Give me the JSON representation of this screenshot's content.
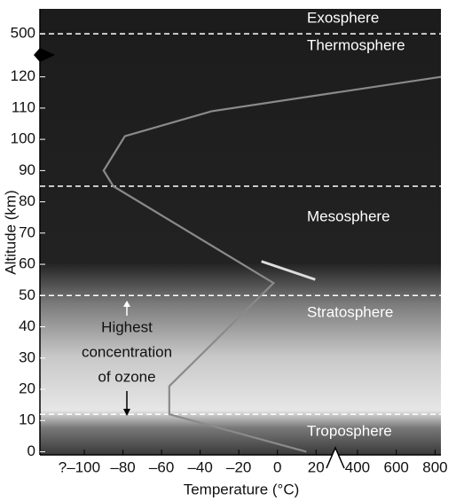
{
  "chart_data": {
    "type": "line",
    "x_label": "Temperature (°C)",
    "y_label": "Altitude (km)",
    "xsegments": [
      {
        "xlim": [
          -123,
          30
        ],
        "xticks": [
          {
            "value": -100,
            "label": "?–100"
          },
          {
            "value": -80,
            "label": "–80"
          },
          {
            "value": -60,
            "label": "–60"
          },
          {
            "value": -40,
            "label": "–40"
          },
          {
            "value": -20,
            "label": "–20"
          },
          0,
          20
        ]
      },
      {
        "xlim": [
          286,
          830
        ],
        "xticks": [
          400,
          600,
          800
        ]
      }
    ],
    "ysegments": [
      {
        "ylim": [
          -1,
          127
        ],
        "yticks": [
          0,
          10,
          20,
          30,
          40,
          50,
          60,
          70,
          80,
          90,
          100,
          110,
          120
        ]
      },
      {
        "ylim": [
          478,
          526
        ],
        "yticks": [
          500
        ]
      }
    ],
    "boundaries": [
      12,
      50,
      85,
      500
    ],
    "series": [
      {
        "color": "#8a8a8a",
        "x": [
          15,
          -56,
          -56,
          -2,
          -85,
          -90,
          -79,
          -34,
          830
        ],
        "values": [
          0,
          12,
          21,
          54,
          85,
          90,
          101,
          109,
          120
        ]
      }
    ],
    "annotations": [
      "Exosphere",
      "Thermosphere",
      "Mesosphere",
      "Stratosphere",
      "Troposphere",
      "Highest",
      "concentration",
      "of ozone"
    ]
  }
}
